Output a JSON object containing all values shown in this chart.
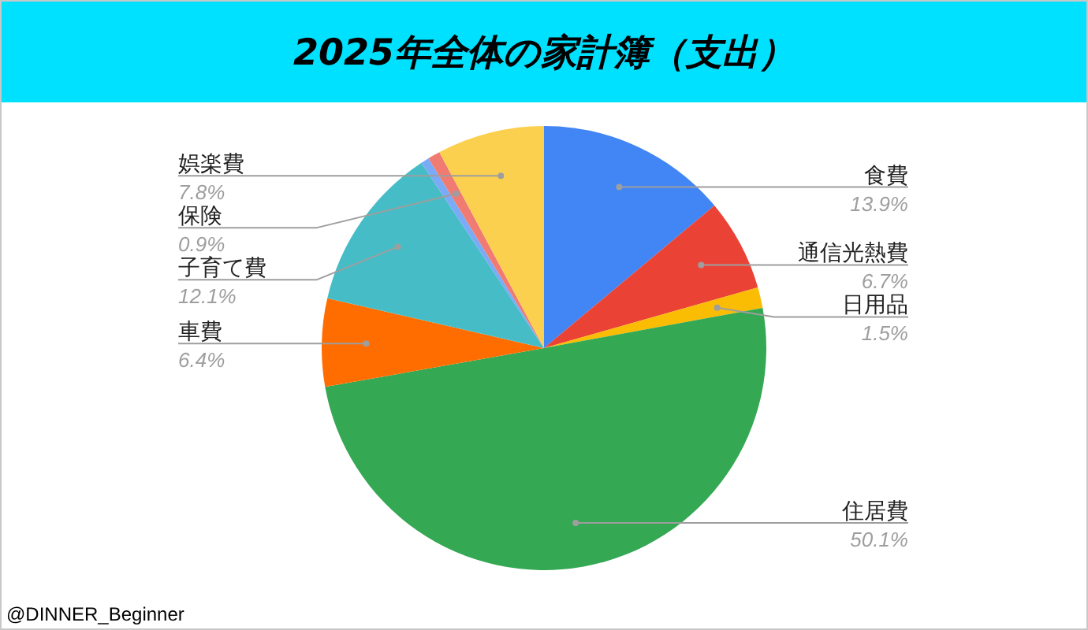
{
  "chart_data": {
    "type": "pie",
    "title": "2025年全体の家計簿（支出）",
    "categories": [
      "食費",
      "通信光熱費",
      "日用品",
      "住居費",
      "車費",
      "子育て費",
      null,
      "保険",
      "娯楽費"
    ],
    "values": [
      13.9,
      6.7,
      1.5,
      50.1,
      6.4,
      12.1,
      0.6,
      0.9,
      7.8
    ],
    "colors": [
      "#4285f4",
      "#ea4335",
      "#fbbc04",
      "#34a853",
      "#ff6d01",
      "#46bdc6",
      "#7baaf7",
      "#f07b72",
      "#fcd04f"
    ],
    "value_labels": [
      "13.9%",
      "6.7%",
      "1.5%",
      "50.1%",
      "6.4%",
      "12.1%",
      null,
      "0.9%",
      "7.8%"
    ],
    "legend": false,
    "annotations": [
      "@DINNER_Beginner"
    ]
  }
}
